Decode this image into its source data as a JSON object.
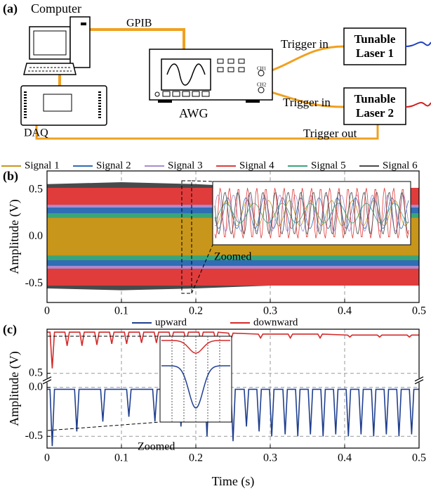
{
  "diagram": {
    "label": "(a)",
    "computer": "Computer",
    "bus": "GPIB",
    "awg": "AWG",
    "ch1": "CH1",
    "ch2": "CH2",
    "daq": "DAQ",
    "trigger_in_1": "Trigger in",
    "laser_1": [
      "Tunable",
      "Laser 1"
    ],
    "trigger_in_2": "Trigger in",
    "laser_2": [
      "Tunable",
      "Laser 2"
    ],
    "trigger_out": "Trigger out"
  },
  "chart_data": [
    {
      "type": "band",
      "label": "(b)",
      "y_label": "Amplitude (V)",
      "annotation": "Zoomed",
      "x": [
        0,
        0.1,
        0.2,
        0.3,
        0.4,
        0.5
      ],
      "series": [
        {
          "name": "Signal 1",
          "color": "#c8961a",
          "upper": [
            0.2,
            0.2,
            0.2,
            0.2,
            0.2,
            0.2
          ],
          "lower": [
            -0.2,
            -0.2,
            -0.2,
            -0.2,
            -0.2,
            -0.2
          ]
        },
        {
          "name": "Signal 2",
          "color": "#2f6db5",
          "upper": [
            0.31,
            0.31,
            0.31,
            0.31,
            0.31,
            0.31
          ],
          "lower": [
            -0.31,
            -0.31,
            -0.31,
            -0.31,
            -0.31,
            -0.31
          ]
        },
        {
          "name": "Signal 3",
          "color": "#a98bd0",
          "upper": [
            0.34,
            0.34,
            0.34,
            0.34,
            0.34,
            0.34
          ],
          "lower": [
            -0.34,
            -0.34,
            -0.34,
            -0.34,
            -0.34,
            -0.34
          ]
        },
        {
          "name": "Signal 4",
          "color": "#e03c3c",
          "upper": [
            0.52,
            0.52,
            0.52,
            0.52,
            0.52,
            0.52
          ],
          "lower": [
            -0.52,
            -0.52,
            -0.52,
            -0.52,
            -0.52,
            -0.52
          ]
        },
        {
          "name": "Signal 5",
          "color": "#3aa57a",
          "upper": [
            0.25,
            0.25,
            0.25,
            0.25,
            0.25,
            0.25
          ],
          "lower": [
            -0.25,
            -0.25,
            -0.25,
            -0.25,
            -0.25,
            -0.25
          ]
        },
        {
          "name": "Signal 6",
          "color": "#4a4a4a",
          "upper": [
            0.56,
            0.58,
            0.56,
            0.52,
            0.52,
            0.52
          ],
          "lower": [
            -0.55,
            -0.57,
            -0.55,
            -0.52,
            -0.52,
            -0.52
          ]
        }
      ],
      "xlim": [
        0,
        0.5
      ],
      "xticks": [
        0,
        0.1,
        0.2,
        0.3,
        0.4,
        0.5
      ],
      "ylim": [
        -0.7,
        0.7
      ],
      "yticks": [
        -0.5,
        {
          "value": 0,
          "label": "0.0"
        },
        0.5
      ],
      "grid": true
    },
    {
      "type": "line",
      "label": "(c)",
      "y_label": "Amplitude (V)",
      "x_label": "Time (s)",
      "annotation": "Zoomed",
      "series": [
        {
          "name": "upward",
          "color": "#1f3f8f",
          "x": [
            0,
            0.004,
            0.007,
            0.01,
            0.037,
            0.04,
            0.043,
            0.072,
            0.075,
            0.078,
            0.107,
            0.11,
            0.113,
            0.142,
            0.145,
            0.148,
            0.177,
            0.18,
            0.183,
            0.212,
            0.215,
            0.218,
            0.247,
            0.25,
            0.253,
            0.265,
            0.268,
            0.271,
            0.282,
            0.285,
            0.288,
            0.299,
            0.302,
            0.305,
            0.317,
            0.32,
            0.323,
            0.334,
            0.337,
            0.34,
            0.351,
            0.354,
            0.357,
            0.368,
            0.371,
            0.374,
            0.385,
            0.388,
            0.391,
            0.402,
            0.405,
            0.408,
            0.419,
            0.422,
            0.425,
            0.436,
            0.439,
            0.442,
            0.453,
            0.456,
            0.459,
            0.47,
            0.473,
            0.476,
            0.487,
            0.49,
            0.493,
            0.5
          ],
          "values": [
            -0.02,
            -0.02,
            -0.6,
            -0.02,
            -0.02,
            -0.45,
            -0.02,
            -0.02,
            -0.35,
            -0.02,
            -0.02,
            -0.3,
            -0.02,
            -0.02,
            -0.35,
            -0.02,
            -0.02,
            -0.4,
            -0.02,
            -0.02,
            -0.5,
            -0.02,
            -0.02,
            -0.55,
            -0.02,
            -0.02,
            -0.4,
            -0.02,
            -0.02,
            -0.45,
            -0.02,
            -0.02,
            -0.5,
            -0.02,
            -0.02,
            -0.48,
            -0.02,
            -0.02,
            -0.5,
            -0.02,
            -0.02,
            -0.48,
            -0.02,
            -0.02,
            -0.5,
            -0.02,
            -0.02,
            -0.48,
            -0.02,
            -0.02,
            -0.5,
            -0.02,
            -0.02,
            -0.48,
            -0.02,
            -0.02,
            -0.5,
            -0.02,
            -0.02,
            -0.48,
            -0.02,
            -0.02,
            -0.5,
            -0.02,
            -0.02,
            -0.48,
            -0.02,
            -0.02
          ]
        },
        {
          "name": "downward",
          "color": "#d42a2a",
          "x": [
            0,
            0.004,
            0.007,
            0.01,
            0.024,
            0.027,
            0.03,
            0.044,
            0.047,
            0.05,
            0.064,
            0.067,
            0.07,
            0.084,
            0.087,
            0.09,
            0.104,
            0.107,
            0.11,
            0.124,
            0.127,
            0.13,
            0.144,
            0.147,
            0.15,
            0.164,
            0.167,
            0.17,
            0.184,
            0.187,
            0.19,
            0.204,
            0.207,
            0.21,
            0.224,
            0.227,
            0.23,
            0.244,
            0.247,
            0.25,
            0.284,
            0.287,
            0.29,
            0.324,
            0.327,
            0.33,
            0.364,
            0.367,
            0.37,
            0.404,
            0.407,
            0.41,
            0.444,
            0.447,
            0.45,
            0.484,
            0.487,
            0.49,
            0.5
          ],
          "values": [
            0.92,
            0.92,
            0.55,
            0.92,
            0.92,
            0.78,
            0.92,
            0.92,
            0.78,
            0.92,
            0.92,
            0.79,
            0.92,
            0.92,
            0.8,
            0.92,
            0.92,
            0.8,
            0.92,
            0.92,
            0.81,
            0.92,
            0.92,
            0.81,
            0.92,
            0.92,
            0.82,
            0.92,
            0.92,
            0.82,
            0.92,
            0.92,
            0.83,
            0.92,
            0.92,
            0.83,
            0.92,
            0.91,
            0.84,
            0.91,
            0.9,
            0.86,
            0.9,
            0.9,
            0.86,
            0.9,
            0.9,
            0.86,
            0.9,
            0.89,
            0.87,
            0.89,
            0.89,
            0.87,
            0.89,
            0.89,
            0.87,
            0.89,
            0.89
          ]
        }
      ],
      "xlim": [
        0,
        0.5
      ],
      "xticks": [
        0,
        0.1,
        0.2,
        0.3,
        0.4,
        0.5
      ],
      "ylim": [
        -0.62,
        0.95
      ],
      "ybreak": [
        0.05,
        0.45
      ],
      "yticks": [
        -0.5,
        {
          "value": 0,
          "label": "0.0"
        },
        0.5
      ],
      "grid": true
    }
  ]
}
